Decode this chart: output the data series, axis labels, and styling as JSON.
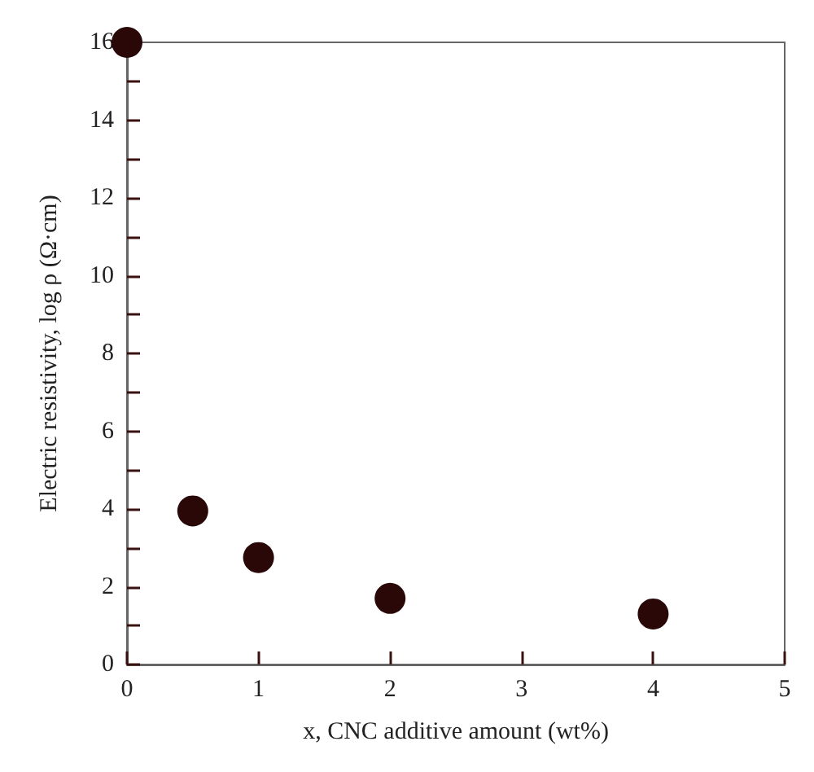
{
  "chart_data": {
    "type": "scatter",
    "xlabel": "x, CNC additive amount (wt%)",
    "ylabel": "Electric resistivity, log ρ (Ω·cm)",
    "x": [
      0,
      0.5,
      1,
      2,
      4
    ],
    "series": [
      {
        "color": "#2a0808",
        "values": [
          16,
          3.95,
          2.75,
          1.7,
          1.3
        ]
      }
    ],
    "xlim": [
      0,
      5
    ],
    "xticks": [
      0,
      1,
      2,
      3,
      4,
      5
    ],
    "ylim": [
      0,
      16
    ],
    "yticks": [
      0,
      {
        "value": 1,
        "label": null
      },
      2,
      {
        "value": 3,
        "label": null
      },
      4,
      {
        "value": 5,
        "label": null
      },
      6,
      {
        "value": 7,
        "label": null
      },
      8,
      {
        "value": 9,
        "label": null
      },
      10,
      {
        "value": 11,
        "label": null
      },
      12,
      {
        "value": 13,
        "label": null
      },
      14,
      {
        "value": 15,
        "label": null
      },
      16
    ],
    "grid": false,
    "marker": "circle"
  }
}
